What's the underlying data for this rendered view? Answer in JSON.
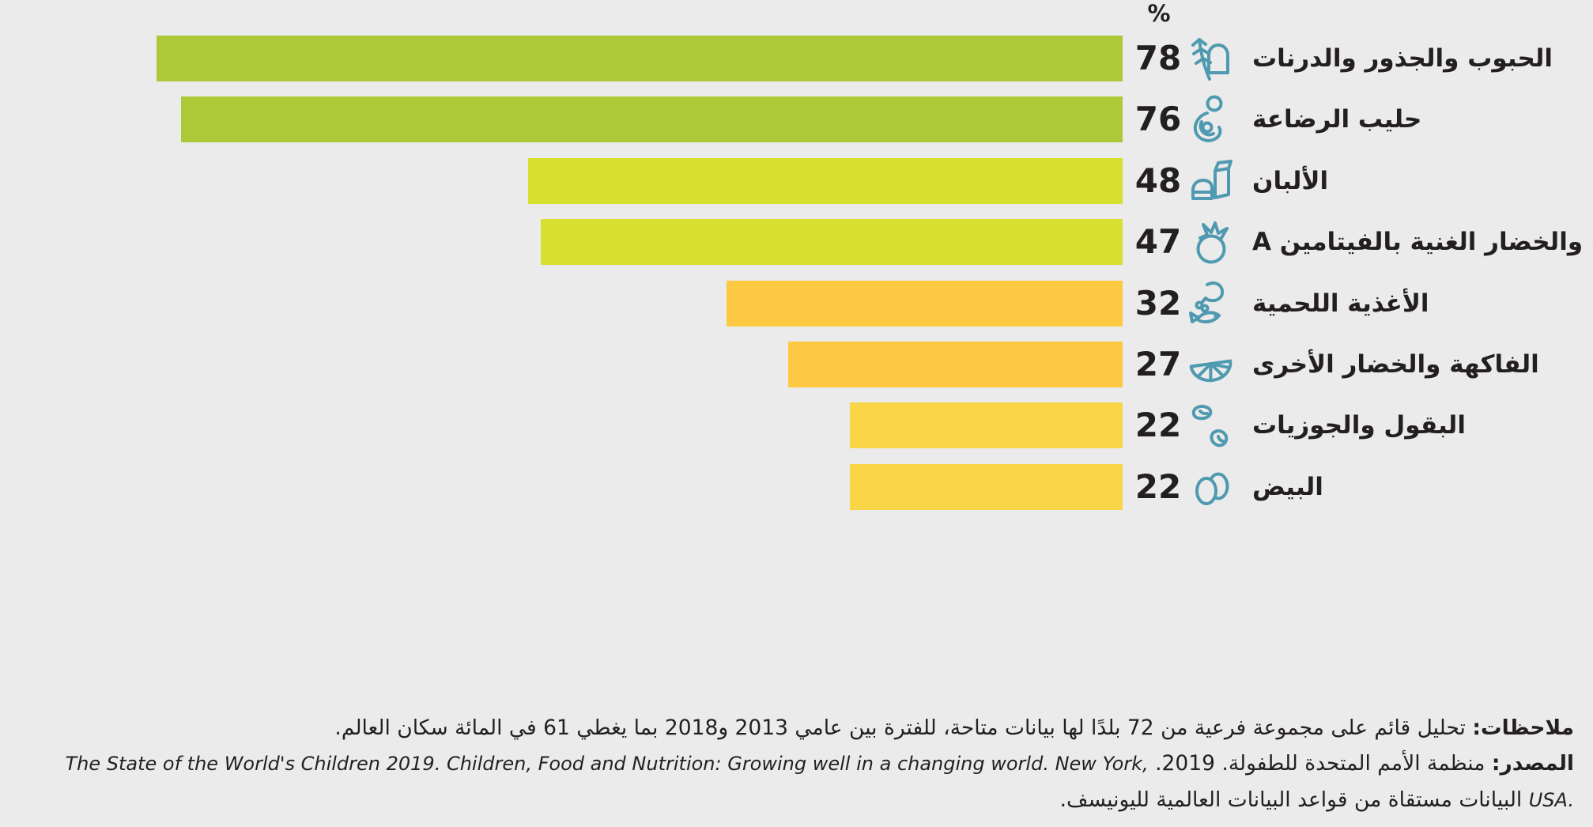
{
  "chart_data": {
    "type": "bar",
    "orientation": "horizontal_rtl",
    "unit_label": "%",
    "grid": false,
    "legend": false,
    "axis_range": [
      0,
      78
    ],
    "rows": [
      {
        "label": "الحبوب والجذور والدرنات",
        "value": 78,
        "color": "#adc938",
        "icon": "bread-wheat-icon"
      },
      {
        "label": "حليب الرضاعة",
        "value": 76,
        "color": "#adc938",
        "icon": "breastfeeding-icon"
      },
      {
        "label": "الألبان",
        "value": 48,
        "color": "#d7e02f",
        "icon": "dairy-icon"
      },
      {
        "label": "الفاكهة والخضار الغنية بالفيتامين A",
        "value": 47,
        "color": "#d7e02f",
        "icon": "tomato-icon"
      },
      {
        "label": "الأغذية اللحمية",
        "value": 32,
        "color": "#fdc943",
        "icon": "meat-fish-icon"
      },
      {
        "label": "الفاكهة والخضار الأخرى",
        "value": 27,
        "color": "#fdc943",
        "icon": "citrus-slice-icon"
      },
      {
        "label": "البقول والجوزيات",
        "value": 22,
        "color": "#f8d648",
        "icon": "legumes-icon"
      },
      {
        "label": "البيض",
        "value": 22,
        "color": "#f8d648",
        "icon": "eggs-icon"
      }
    ]
  },
  "notes": {
    "label": "ملاحظات:",
    "text": "تحليل قائم على مجموعة فرعية من 72 بلدًا لها بيانات متاحة، للفترة بين عامي 2013 و2018 بما يغطي 61 في المائة سكان العالم."
  },
  "source": {
    "label": "المصدر:",
    "text_before": "منظمة الأمم المتحدة للطفولة. 2019.",
    "citation_en": "The State of the World's Children 2019. Children, Food and Nutrition: Growing well in a changing world. New York, USA.",
    "text_after": "البيانات مستقاة من قواعد البيانات العالمية لليونيسف."
  },
  "colors": {
    "background": "#ebebeb",
    "text": "#231f20",
    "icon_stroke": "#4f9ab0",
    "bar_green": "#adc938",
    "bar_lime": "#d7e02f",
    "bar_amber": "#fdc943",
    "bar_yellow": "#f8d648"
  }
}
